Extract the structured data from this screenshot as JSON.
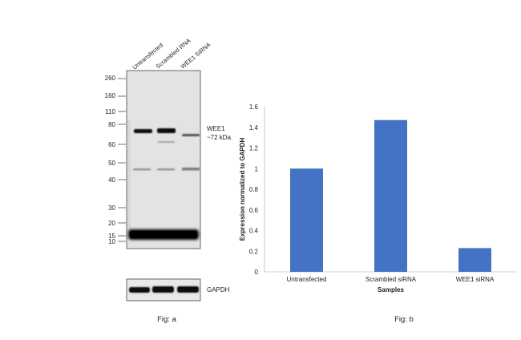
{
  "blot": {
    "lane_labels": [
      "Untransfected",
      "Scrambled RNA",
      "WEE1 SiRNA"
    ],
    "mw_markers": [
      "260",
      "160",
      "110",
      "80",
      "60",
      "50",
      "40",
      "30",
      "20",
      "15",
      "10"
    ],
    "band_label_line1": "WEE1",
    "band_label_line2": "~72 kDa",
    "control_label": "GAPDH",
    "caption": "Fig: a"
  },
  "chart_data": {
    "type": "bar",
    "categories": [
      "Untransfected",
      "Scrambled siRNA",
      "WEE1 siRNA"
    ],
    "values": [
      1.0,
      1.47,
      0.23
    ],
    "xlabel": "Samples",
    "ylabel": "Expression normalized to GAPDH",
    "ylim": [
      0,
      1.6
    ],
    "yticks": [
      "0",
      "0.2",
      "0.4",
      "0.6",
      "0.8",
      "1",
      "1.2",
      "1.4",
      "1.6"
    ],
    "bar_color": "#4472c4",
    "grid": false,
    "caption": "Fig: b"
  }
}
